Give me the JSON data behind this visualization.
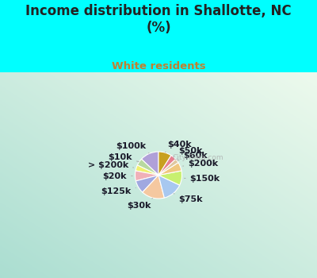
{
  "title": "Income distribution in Shallotte, NC\n(%)",
  "subtitle": "White residents",
  "title_color": "#222222",
  "subtitle_color": "#c08030",
  "bg_top_color": "#00ffff",
  "chart_bg_tl": "#a8ddd0",
  "chart_bg_br": "#e8f8e8",
  "labels": [
    "$100k",
    "$10k",
    "> $200k",
    "$20k",
    "$125k",
    "$30k",
    "$75k",
    "$150k",
    "$200k",
    "$60k",
    "$50k",
    "$40k"
  ],
  "values": [
    13,
    5,
    4,
    7,
    9,
    16,
    14,
    10,
    6,
    3,
    4,
    9
  ],
  "colors": [
    "#b0a0d8",
    "#b8d8a0",
    "#f0f070",
    "#f0b0b8",
    "#a0a8e0",
    "#f5c8a0",
    "#a8c8f0",
    "#c8f070",
    "#f0c880",
    "#e0c8a0",
    "#e88090",
    "#c8a020"
  ],
  "start_angle": 90,
  "label_fontsize": 8,
  "label_color": "#1a1a2a",
  "watermark": "City-Data.com",
  "line_color": "#aaaaaa",
  "edge_color": "white",
  "edge_lw": 0.8
}
